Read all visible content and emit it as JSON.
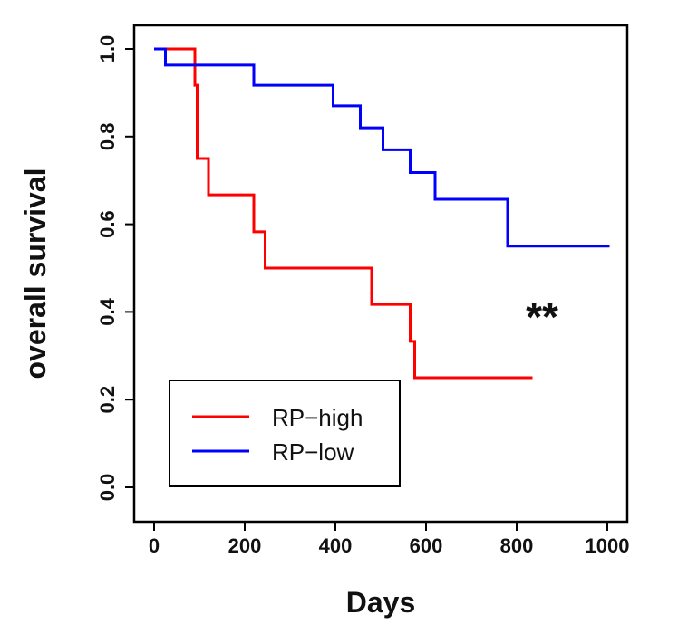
{
  "chart_data": {
    "type": "line",
    "title": "",
    "xlabel": "Days",
    "ylabel": "overall survival",
    "xlim": [
      0,
      1000
    ],
    "ylim": [
      0,
      1
    ],
    "x_ticks": [
      "0",
      "200",
      "400",
      "600",
      "800",
      "1000"
    ],
    "y_ticks": [
      "0.0",
      "0.2",
      "0.4",
      "0.6",
      "0.8",
      "1.0"
    ],
    "grid": false,
    "legend_placement": "bottom-left",
    "annotation": "**",
    "series": [
      {
        "name": "RP−high",
        "color": "#ff0000",
        "step_points": [
          [
            0,
            1.0
          ],
          [
            90,
            1.0
          ],
          [
            90,
            0.917
          ],
          [
            95,
            0.917
          ],
          [
            95,
            0.75
          ],
          [
            120,
            0.75
          ],
          [
            120,
            0.667
          ],
          [
            220,
            0.667
          ],
          [
            220,
            0.583
          ],
          [
            245,
            0.583
          ],
          [
            245,
            0.5
          ],
          [
            480,
            0.5
          ],
          [
            480,
            0.417
          ],
          [
            565,
            0.417
          ],
          [
            565,
            0.333
          ],
          [
            575,
            0.333
          ],
          [
            575,
            0.25
          ],
          [
            835,
            0.25
          ]
        ]
      },
      {
        "name": "RP−low",
        "color": "#0000ff",
        "step_points": [
          [
            0,
            1.0
          ],
          [
            25,
            1.0
          ],
          [
            25,
            0.963
          ],
          [
            220,
            0.963
          ],
          [
            220,
            0.917
          ],
          [
            395,
            0.917
          ],
          [
            395,
            0.87
          ],
          [
            455,
            0.87
          ],
          [
            455,
            0.82
          ],
          [
            505,
            0.82
          ],
          [
            505,
            0.77
          ],
          [
            565,
            0.77
          ],
          [
            565,
            0.718
          ],
          [
            620,
            0.718
          ],
          [
            620,
            0.657
          ],
          [
            780,
            0.657
          ],
          [
            780,
            0.55
          ],
          [
            1005,
            0.55
          ]
        ]
      }
    ]
  }
}
